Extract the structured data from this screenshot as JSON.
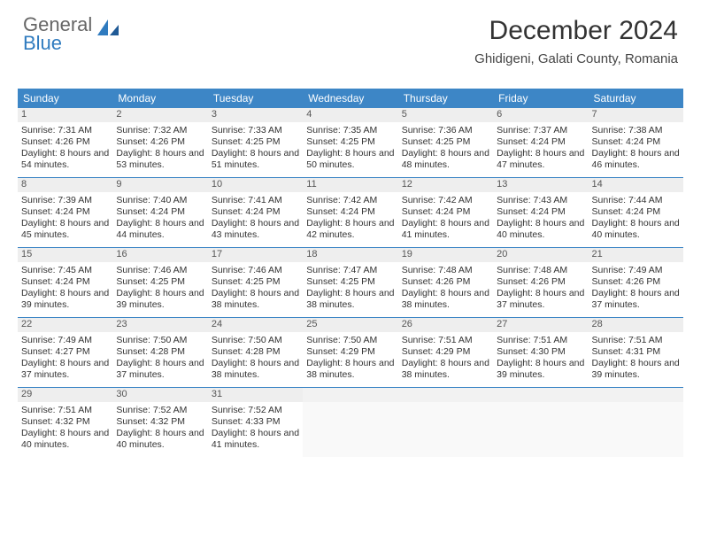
{
  "logo": {
    "top": "General",
    "bottom": "Blue"
  },
  "title": "December 2024",
  "location": "Ghidigeni, Galati County, Romania",
  "colors": {
    "header_bg": "#3d86c6",
    "daynum_bg": "#eeeeee",
    "row_border": "#3d86c6",
    "text": "#333333",
    "logo_blue": "#2f7bbf",
    "logo_gray": "#666666"
  },
  "dow": [
    "Sunday",
    "Monday",
    "Tuesday",
    "Wednesday",
    "Thursday",
    "Friday",
    "Saturday"
  ],
  "weeks": [
    [
      {
        "n": "1",
        "sr": "Sunrise: 7:31 AM",
        "ss": "Sunset: 4:26 PM",
        "dl": "Daylight: 8 hours and 54 minutes."
      },
      {
        "n": "2",
        "sr": "Sunrise: 7:32 AM",
        "ss": "Sunset: 4:26 PM",
        "dl": "Daylight: 8 hours and 53 minutes."
      },
      {
        "n": "3",
        "sr": "Sunrise: 7:33 AM",
        "ss": "Sunset: 4:25 PM",
        "dl": "Daylight: 8 hours and 51 minutes."
      },
      {
        "n": "4",
        "sr": "Sunrise: 7:35 AM",
        "ss": "Sunset: 4:25 PM",
        "dl": "Daylight: 8 hours and 50 minutes."
      },
      {
        "n": "5",
        "sr": "Sunrise: 7:36 AM",
        "ss": "Sunset: 4:25 PM",
        "dl": "Daylight: 8 hours and 48 minutes."
      },
      {
        "n": "6",
        "sr": "Sunrise: 7:37 AM",
        "ss": "Sunset: 4:24 PM",
        "dl": "Daylight: 8 hours and 47 minutes."
      },
      {
        "n": "7",
        "sr": "Sunrise: 7:38 AM",
        "ss": "Sunset: 4:24 PM",
        "dl": "Daylight: 8 hours and 46 minutes."
      }
    ],
    [
      {
        "n": "8",
        "sr": "Sunrise: 7:39 AM",
        "ss": "Sunset: 4:24 PM",
        "dl": "Daylight: 8 hours and 45 minutes."
      },
      {
        "n": "9",
        "sr": "Sunrise: 7:40 AM",
        "ss": "Sunset: 4:24 PM",
        "dl": "Daylight: 8 hours and 44 minutes."
      },
      {
        "n": "10",
        "sr": "Sunrise: 7:41 AM",
        "ss": "Sunset: 4:24 PM",
        "dl": "Daylight: 8 hours and 43 minutes."
      },
      {
        "n": "11",
        "sr": "Sunrise: 7:42 AM",
        "ss": "Sunset: 4:24 PM",
        "dl": "Daylight: 8 hours and 42 minutes."
      },
      {
        "n": "12",
        "sr": "Sunrise: 7:42 AM",
        "ss": "Sunset: 4:24 PM",
        "dl": "Daylight: 8 hours and 41 minutes."
      },
      {
        "n": "13",
        "sr": "Sunrise: 7:43 AM",
        "ss": "Sunset: 4:24 PM",
        "dl": "Daylight: 8 hours and 40 minutes."
      },
      {
        "n": "14",
        "sr": "Sunrise: 7:44 AM",
        "ss": "Sunset: 4:24 PM",
        "dl": "Daylight: 8 hours and 40 minutes."
      }
    ],
    [
      {
        "n": "15",
        "sr": "Sunrise: 7:45 AM",
        "ss": "Sunset: 4:24 PM",
        "dl": "Daylight: 8 hours and 39 minutes."
      },
      {
        "n": "16",
        "sr": "Sunrise: 7:46 AM",
        "ss": "Sunset: 4:25 PM",
        "dl": "Daylight: 8 hours and 39 minutes."
      },
      {
        "n": "17",
        "sr": "Sunrise: 7:46 AM",
        "ss": "Sunset: 4:25 PM",
        "dl": "Daylight: 8 hours and 38 minutes."
      },
      {
        "n": "18",
        "sr": "Sunrise: 7:47 AM",
        "ss": "Sunset: 4:25 PM",
        "dl": "Daylight: 8 hours and 38 minutes."
      },
      {
        "n": "19",
        "sr": "Sunrise: 7:48 AM",
        "ss": "Sunset: 4:26 PM",
        "dl": "Daylight: 8 hours and 38 minutes."
      },
      {
        "n": "20",
        "sr": "Sunrise: 7:48 AM",
        "ss": "Sunset: 4:26 PM",
        "dl": "Daylight: 8 hours and 37 minutes."
      },
      {
        "n": "21",
        "sr": "Sunrise: 7:49 AM",
        "ss": "Sunset: 4:26 PM",
        "dl": "Daylight: 8 hours and 37 minutes."
      }
    ],
    [
      {
        "n": "22",
        "sr": "Sunrise: 7:49 AM",
        "ss": "Sunset: 4:27 PM",
        "dl": "Daylight: 8 hours and 37 minutes."
      },
      {
        "n": "23",
        "sr": "Sunrise: 7:50 AM",
        "ss": "Sunset: 4:28 PM",
        "dl": "Daylight: 8 hours and 37 minutes."
      },
      {
        "n": "24",
        "sr": "Sunrise: 7:50 AM",
        "ss": "Sunset: 4:28 PM",
        "dl": "Daylight: 8 hours and 38 minutes."
      },
      {
        "n": "25",
        "sr": "Sunrise: 7:50 AM",
        "ss": "Sunset: 4:29 PM",
        "dl": "Daylight: 8 hours and 38 minutes."
      },
      {
        "n": "26",
        "sr": "Sunrise: 7:51 AM",
        "ss": "Sunset: 4:29 PM",
        "dl": "Daylight: 8 hours and 38 minutes."
      },
      {
        "n": "27",
        "sr": "Sunrise: 7:51 AM",
        "ss": "Sunset: 4:30 PM",
        "dl": "Daylight: 8 hours and 39 minutes."
      },
      {
        "n": "28",
        "sr": "Sunrise: 7:51 AM",
        "ss": "Sunset: 4:31 PM",
        "dl": "Daylight: 8 hours and 39 minutes."
      }
    ],
    [
      {
        "n": "29",
        "sr": "Sunrise: 7:51 AM",
        "ss": "Sunset: 4:32 PM",
        "dl": "Daylight: 8 hours and 40 minutes."
      },
      {
        "n": "30",
        "sr": "Sunrise: 7:52 AM",
        "ss": "Sunset: 4:32 PM",
        "dl": "Daylight: 8 hours and 40 minutes."
      },
      {
        "n": "31",
        "sr": "Sunrise: 7:52 AM",
        "ss": "Sunset: 4:33 PM",
        "dl": "Daylight: 8 hours and 41 minutes."
      },
      null,
      null,
      null,
      null
    ]
  ]
}
